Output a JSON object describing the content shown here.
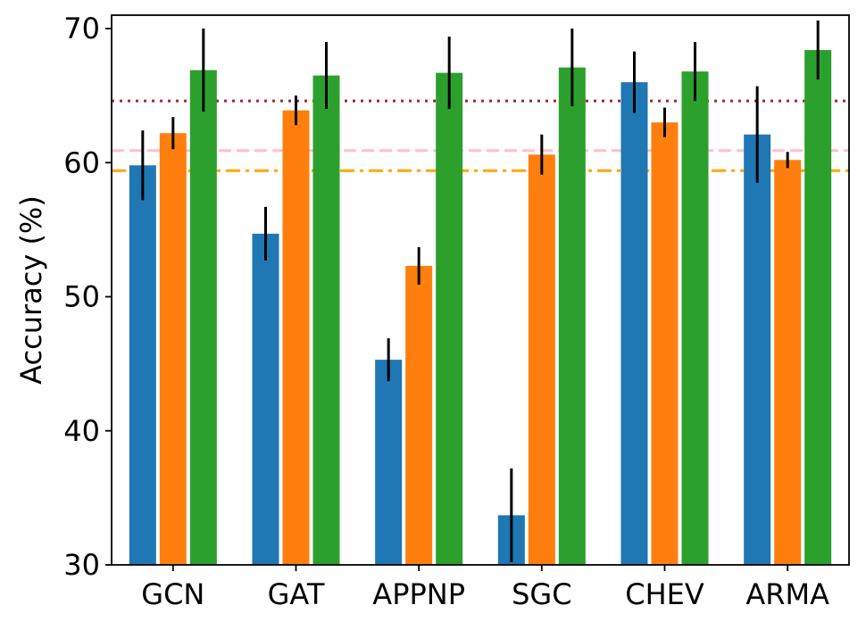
{
  "chart_data": {
    "type": "bar",
    "title": "",
    "xlabel": "",
    "ylabel": "Accuracy (%)",
    "ylim": [
      30,
      71
    ],
    "yticks": [
      30,
      40,
      50,
      60,
      70
    ],
    "grid": false,
    "categories": [
      "GCN",
      "GAT",
      "APPNP",
      "SGC",
      "CHEV",
      "ARMA"
    ],
    "series": [
      {
        "name": "series-1",
        "color": "#1f77b4",
        "values": [
          59.8,
          54.7,
          45.3,
          33.7,
          66.0,
          62.1
        ],
        "errors": [
          2.6,
          2.0,
          1.6,
          3.5,
          2.3,
          3.6
        ]
      },
      {
        "name": "series-2",
        "color": "#ff7f0e",
        "values": [
          62.2,
          63.9,
          52.3,
          60.6,
          63.0,
          60.2
        ],
        "errors": [
          1.2,
          1.1,
          1.4,
          1.5,
          1.1,
          0.6
        ]
      },
      {
        "name": "series-3",
        "color": "#2ca02c",
        "values": [
          66.9,
          66.5,
          66.7,
          67.1,
          66.8,
          68.4
        ],
        "errors": [
          3.1,
          2.5,
          2.7,
          2.9,
          2.2,
          2.2
        ]
      }
    ],
    "reference_lines": [
      {
        "name": "dotted-line",
        "value": 64.6,
        "color": "#a52a2a",
        "dash": "3,6"
      },
      {
        "name": "dashed-line",
        "value": 60.9,
        "color": "#ffc0cb",
        "dash": "14,6"
      },
      {
        "name": "dashdot-line",
        "value": 59.4,
        "color": "#ffa500",
        "dash": "16,6,4,6"
      }
    ]
  }
}
